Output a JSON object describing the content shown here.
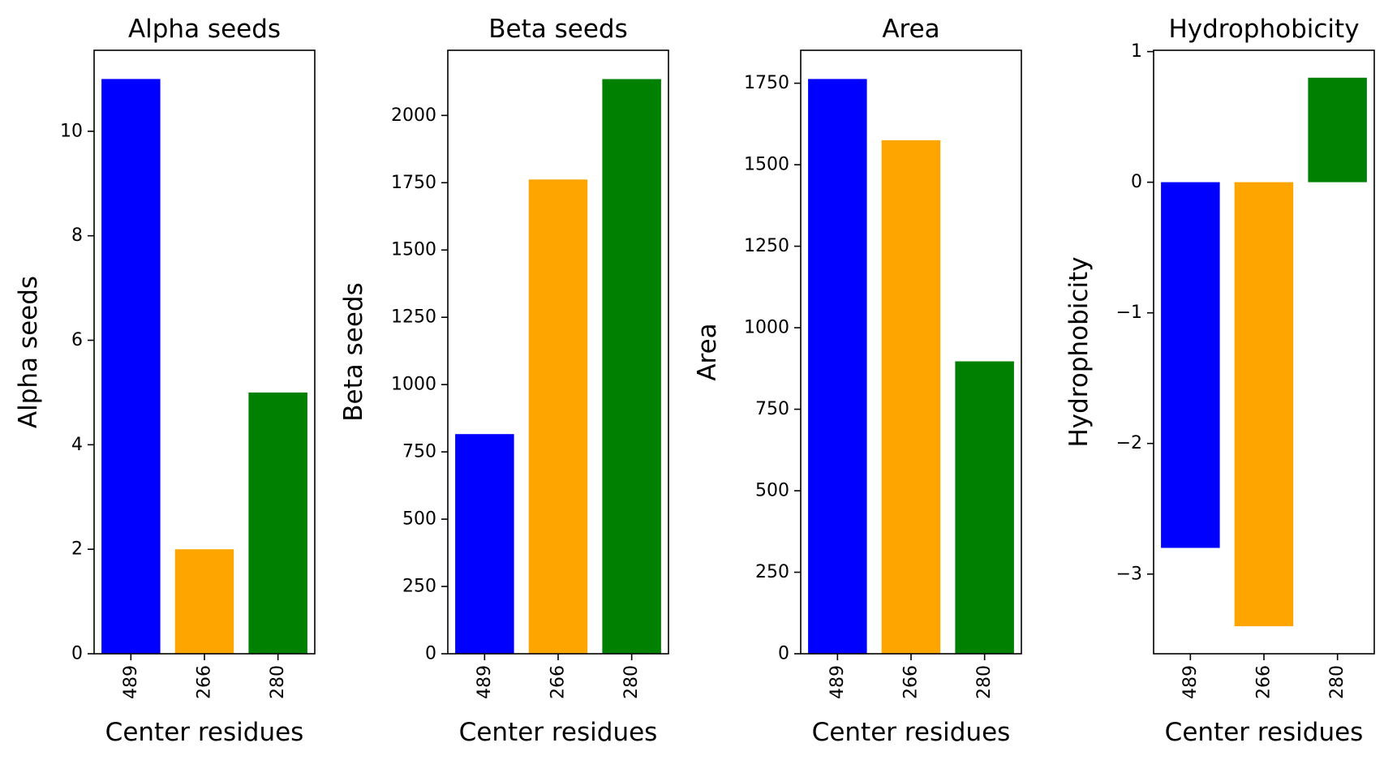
{
  "chart_data": [
    {
      "type": "bar",
      "title": "Alpha seeds",
      "xlabel": "Center residues",
      "ylabel": "Alpha seeds",
      "categories": [
        "489",
        "266",
        "280"
      ],
      "values": [
        11,
        2,
        5
      ],
      "colors": [
        "#0000ff",
        "#ffa500",
        "#008000"
      ],
      "ylim": [
        0,
        11.55
      ],
      "yticks": [
        0,
        2,
        4,
        6,
        8,
        10
      ],
      "ytick_labels": [
        "0",
        "2",
        "4",
        "6",
        "8",
        "10"
      ],
      "grid": false
    },
    {
      "type": "bar",
      "title": "Beta seeds",
      "xlabel": "Center residues",
      "ylabel": "Beta seeds",
      "categories": [
        "489",
        "266",
        "280"
      ],
      "values": [
        816,
        1762,
        2135
      ],
      "colors": [
        "#0000ff",
        "#ffa500",
        "#008000"
      ],
      "ylim": [
        0,
        2242
      ],
      "yticks": [
        0,
        250,
        500,
        750,
        1000,
        1250,
        1500,
        1750,
        2000
      ],
      "ytick_labels": [
        "0",
        "250",
        "500",
        "750",
        "1000",
        "1250",
        "1500",
        "1750",
        "2000"
      ],
      "grid": false
    },
    {
      "type": "bar",
      "title": "Area",
      "xlabel": "Center residues",
      "ylabel": "Area",
      "categories": [
        "489",
        "266",
        "280"
      ],
      "values": [
        1763,
        1575,
        897
      ],
      "colors": [
        "#0000ff",
        "#ffa500",
        "#008000"
      ],
      "ylim": [
        0,
        1851
      ],
      "yticks": [
        0,
        250,
        500,
        750,
        1000,
        1250,
        1500,
        1750
      ],
      "ytick_labels": [
        "0",
        "250",
        "500",
        "750",
        "1000",
        "1250",
        "1500",
        "1750"
      ],
      "grid": false
    },
    {
      "type": "bar",
      "title": "Hydrophobicity",
      "xlabel": "Center residues",
      "ylabel": "Hydrophobicity",
      "categories": [
        "489",
        "266",
        "280"
      ],
      "values": [
        -2.8,
        -3.4,
        0.8
      ],
      "colors": [
        "#0000ff",
        "#ffa500",
        "#008000"
      ],
      "ylim": [
        -3.61,
        1.01
      ],
      "yticks": [
        -3,
        -2,
        -1,
        0,
        1
      ],
      "ytick_labels": [
        "−3",
        "−2",
        "−1",
        "0",
        "1"
      ],
      "grid": false
    }
  ]
}
